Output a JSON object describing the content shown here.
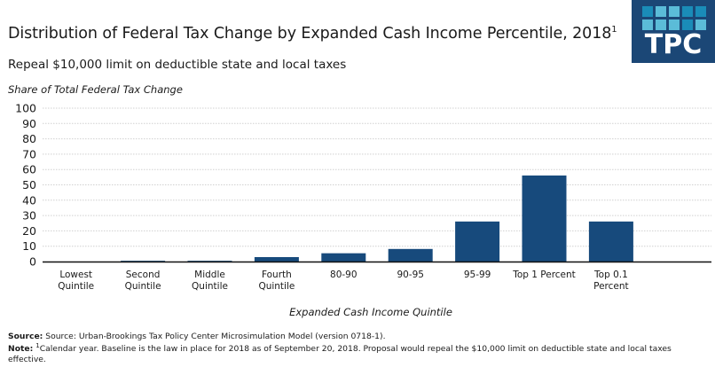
{
  "header": {
    "title": "Distribution of Federal Tax Change by Expanded Cash Income Percentile, 2018",
    "title_footnote_mark": "1",
    "subtitle": "Repeal $10,000  limit on deductible state and local taxes"
  },
  "logo": {
    "text": "TPC",
    "background": "#1b4776",
    "squares_top": [
      "dark",
      "light",
      "light",
      "dark",
      "dark"
    ],
    "squares_bottom": [
      "light",
      "light",
      "light",
      "dark",
      "light"
    ],
    "dark_color": "#1a8cb8",
    "light_color": "#5bbcd8"
  },
  "chart_data": {
    "type": "bar",
    "title": "Distribution of Federal Tax Change by Expanded Cash Income Percentile, 2018",
    "ylabel": "Share of Total Federal Tax Change",
    "xlabel": "Expanded Cash Income Quintile",
    "categories": [
      [
        "Lowest",
        "Quintile"
      ],
      [
        "Second",
        "Quintile"
      ],
      [
        "Middle",
        "Quintile"
      ],
      [
        "Fourth",
        "Quintile"
      ],
      [
        "80-90"
      ],
      [
        "90-95"
      ],
      [
        "95-99"
      ],
      [
        "Top 1 Percent"
      ],
      [
        "Top 0.1",
        "Percent"
      ]
    ],
    "values": [
      0.0,
      0.5,
      0.5,
      2.9,
      5.4,
      8.2,
      26.1,
      56.1,
      26.1
    ],
    "ylim": [
      0,
      100
    ],
    "yticks": [
      0,
      10,
      20,
      30,
      40,
      50,
      60,
      70,
      80,
      90,
      100
    ],
    "grid": true,
    "bar_color": "#174a7c",
    "legend": "none"
  },
  "footer": {
    "source_label": "Source:",
    "source_text": " Source: Urban-Brookings Tax Policy Center Microsimulation Model (version 0718-1).",
    "note_label": "Note:",
    "note_mark": "1",
    "note_text": "Calendar year. Baseline is the law in place for 2018 as of September 20, 2018. Proposal would repeal the $10,000 limit on deductible state and local taxes effective."
  }
}
